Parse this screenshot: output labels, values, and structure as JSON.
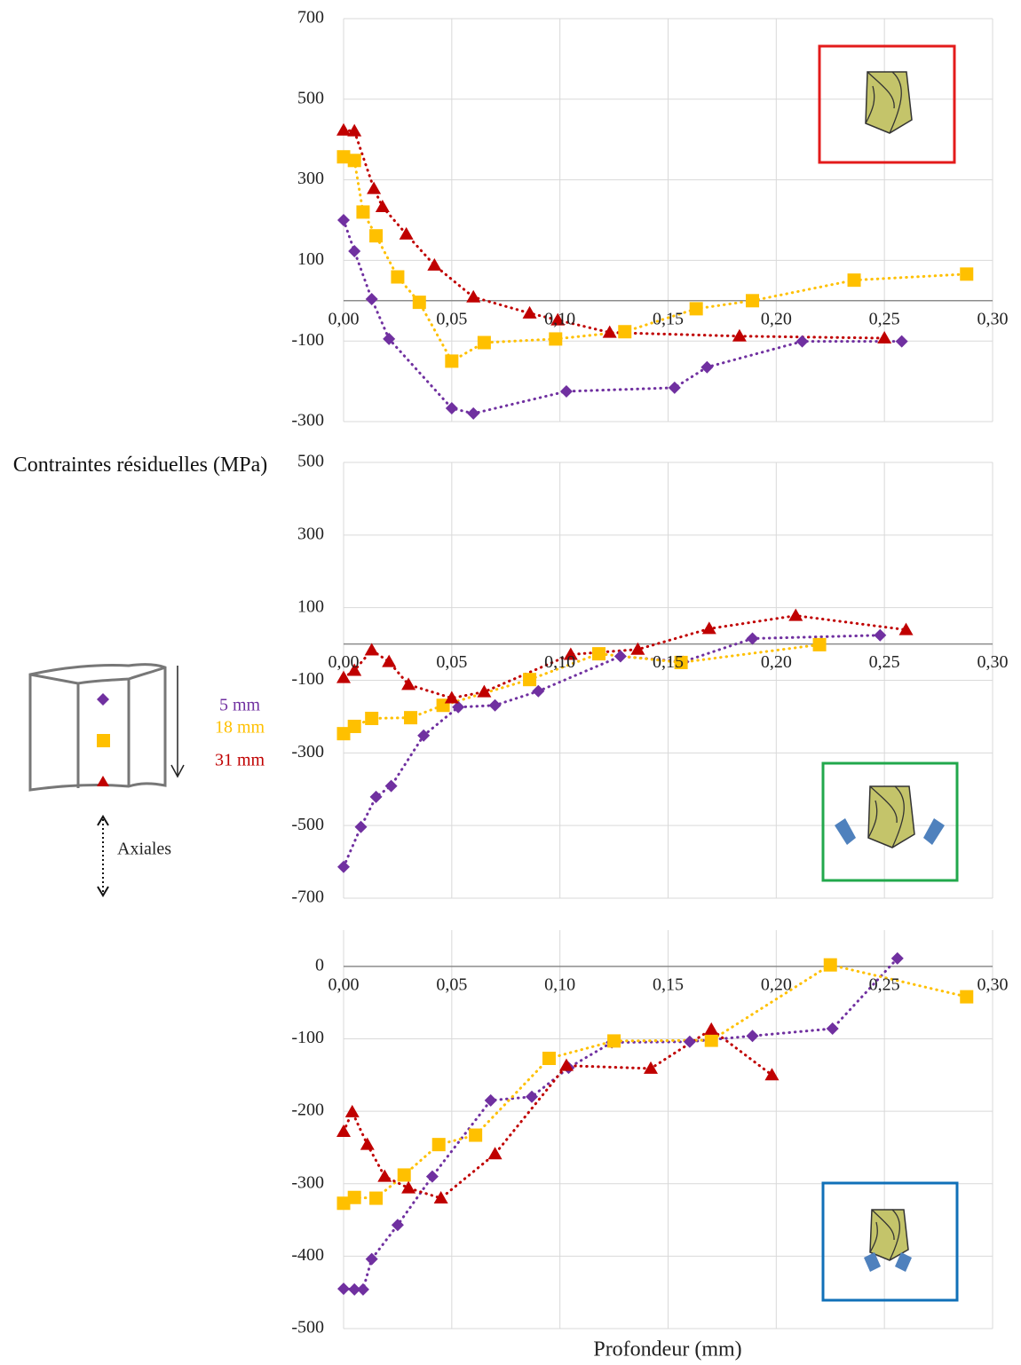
{
  "chart_data": [
    {
      "type": "line",
      "ylabel": "Contraintes résiduelles (MPa)",
      "annotation": "Axiales",
      "xlim": [
        0,
        0.3
      ],
      "xticks": [
        {
          "value": 0,
          "label": "0,00"
        },
        {
          "value": 0.05,
          "label": "0,05"
        },
        {
          "value": 0.1,
          "label": "0,10"
        },
        {
          "value": 0.15,
          "label": "0,15"
        },
        {
          "value": 0.2,
          "label": "0,20"
        },
        {
          "value": 0.25,
          "label": "0,25"
        },
        {
          "value": 0.3,
          "label": "0,30"
        }
      ],
      "ylim": [
        -300,
        700
      ],
      "yticks": [
        700,
        500,
        300,
        100,
        -100,
        -300
      ],
      "grid": true,
      "series": [
        {
          "name": "5 mm",
          "color": "#7030a0",
          "marker": "diamond",
          "x": [
            0,
            0.005,
            0.013,
            0.021,
            0.05,
            0.06,
            0.103,
            0.153,
            0.168,
            0.212,
            0.258
          ],
          "values": [
            200,
            123,
            4,
            -95,
            -267,
            -280,
            -225,
            -216,
            -165,
            -101,
            -101
          ]
        },
        {
          "name": "18 mm",
          "color": "#ffc000",
          "marker": "square",
          "x": [
            0,
            0.005,
            0.009,
            0.015,
            0.025,
            0.035,
            0.05,
            0.065,
            0.098,
            0.13,
            0.163,
            0.189,
            0.236,
            0.288
          ],
          "values": [
            357,
            348,
            220,
            161,
            59,
            -4,
            -150,
            -104,
            -95,
            -77,
            -20,
            0,
            51,
            66
          ]
        },
        {
          "name": "31 mm",
          "color": "#c00000",
          "marker": "triangle",
          "x": [
            0,
            0.005,
            0.014,
            0.018,
            0.029,
            0.042,
            0.06,
            0.086,
            0.099,
            0.123,
            0.183,
            0.25
          ],
          "values": [
            423,
            421,
            278,
            233,
            165,
            88,
            9,
            -31,
            -48,
            -79,
            -88,
            -93
          ]
        }
      ]
    },
    {
      "type": "line",
      "xlim": [
        0,
        0.3
      ],
      "xticks": [
        {
          "value": 0,
          "label": "0,00"
        },
        {
          "value": 0.05,
          "label": "0,05"
        },
        {
          "value": 0.1,
          "label": "0,10"
        },
        {
          "value": 0.15,
          "label": "0,15"
        },
        {
          "value": 0.2,
          "label": "0,20"
        },
        {
          "value": 0.25,
          "label": "0,25"
        },
        {
          "value": 0.3,
          "label": "0,30"
        }
      ],
      "ylim": [
        -700,
        500
      ],
      "yticks": [
        500,
        300,
        100,
        -100,
        -300,
        -500,
        -700
      ],
      "grid": true,
      "series": [
        {
          "color": "#7030a0",
          "marker": "diamond",
          "x": [
            0,
            0.008,
            0.015,
            0.022,
            0.037,
            0.053,
            0.07,
            0.09,
            0.128,
            0.157,
            0.189,
            0.248
          ],
          "values": [
            -614,
            -504,
            -421,
            -391,
            -252,
            -174,
            -169,
            -130,
            -34,
            -49,
            15,
            24
          ]
        },
        {
          "color": "#ffc000",
          "marker": "square",
          "x": [
            0,
            0.005,
            0.013,
            0.031,
            0.046,
            0.086,
            0.118,
            0.156,
            0.22
          ],
          "values": [
            -247,
            -227,
            -205,
            -203,
            -169,
            -98,
            -27,
            -51,
            -2
          ]
        },
        {
          "color": "#c00000",
          "marker": "triangle",
          "x": [
            0,
            0.005,
            0.013,
            0.021,
            0.03,
            0.05,
            0.065,
            0.105,
            0.136,
            0.169,
            0.209,
            0.26
          ],
          "values": [
            -93,
            -73,
            -17,
            -49,
            -112,
            -149,
            -132,
            -29,
            -15,
            42,
            78,
            39
          ]
        }
      ]
    },
    {
      "type": "line",
      "xlabel": "Profondeur (mm)",
      "xlim": [
        0,
        0.3
      ],
      "xticks": [
        {
          "value": 0,
          "label": "0,00"
        },
        {
          "value": 0.05,
          "label": "0,05"
        },
        {
          "value": 0.1,
          "label": "0,10"
        },
        {
          "value": 0.15,
          "label": "0,15"
        },
        {
          "value": 0.2,
          "label": "0,20"
        },
        {
          "value": 0.25,
          "label": "0,25"
        },
        {
          "value": 0.3,
          "label": "0,30"
        }
      ],
      "ylim": [
        -500,
        50
      ],
      "yticks": [
        0,
        -100,
        -200,
        -300,
        -400,
        -500
      ],
      "grid": true,
      "series": [
        {
          "color": "#7030a0",
          "marker": "diamond",
          "x": [
            0,
            0.005,
            0.009,
            0.013,
            0.025,
            0.041,
            0.068,
            0.087,
            0.104,
            0.124,
            0.16,
            0.189,
            0.226,
            0.256
          ],
          "values": [
            -445,
            -446,
            -446,
            -404,
            -357,
            -290,
            -185,
            -180,
            -140,
            -105,
            -104,
            -96,
            -86,
            11
          ]
        },
        {
          "color": "#ffc000",
          "marker": "square",
          "x": [
            0,
            0.005,
            0.015,
            0.028,
            0.044,
            0.061,
            0.095,
            0.125,
            0.17,
            0.225,
            0.288
          ],
          "values": [
            -327,
            -319,
            -320,
            -288,
            -246,
            -233,
            -127,
            -103,
            -102,
            2,
            -42
          ]
        },
        {
          "color": "#c00000",
          "marker": "triangle",
          "x": [
            0,
            0.004,
            0.011,
            0.019,
            0.03,
            0.045,
            0.07,
            0.103,
            0.142,
            0.17,
            0.198
          ],
          "values": [
            -228,
            -201,
            -246,
            -290,
            -306,
            -320,
            -259,
            -137,
            -141,
            -87,
            -150
          ]
        }
      ]
    }
  ]
}
